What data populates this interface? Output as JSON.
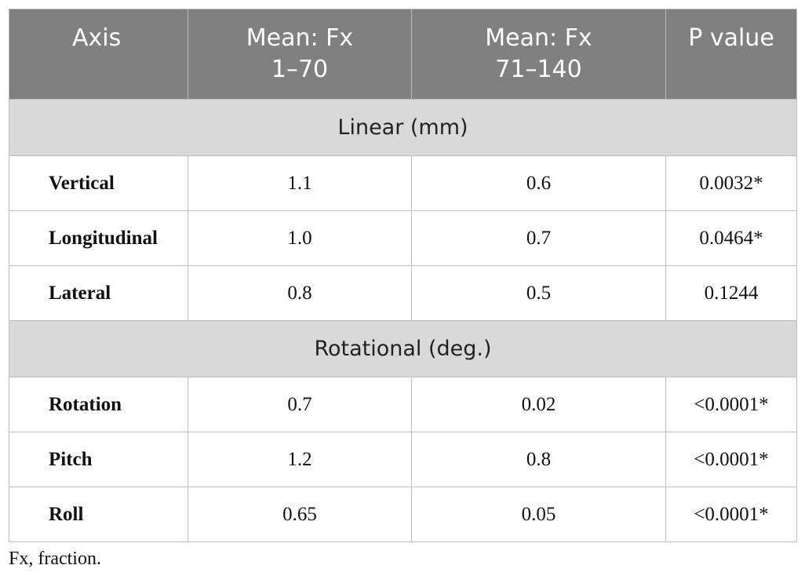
{
  "table": {
    "header": [
      "Axis",
      "Mean: Fx\n1–70",
      "Mean: Fx\n71–140",
      "P value"
    ],
    "sections": [
      {
        "title": "Linear (mm)",
        "rows": [
          [
            "Vertical",
            "1.1",
            "0.6",
            "0.0032*"
          ],
          [
            "Longitudinal",
            "1.0",
            "0.7",
            "0.0464*"
          ],
          [
            "Lateral",
            "0.8",
            "0.5",
            "0.1244"
          ]
        ]
      },
      {
        "title": "Rotational (deg.)",
        "rows": [
          [
            "Rotation",
            "0.7",
            "0.02",
            "<0.0001*"
          ],
          [
            "Pitch",
            "1.2",
            "0.8",
            "<0.0001*"
          ],
          [
            "Roll",
            "0.65",
            "0.05",
            "<0.0001*"
          ]
        ]
      }
    ],
    "footnote": "Fx, fraction."
  }
}
